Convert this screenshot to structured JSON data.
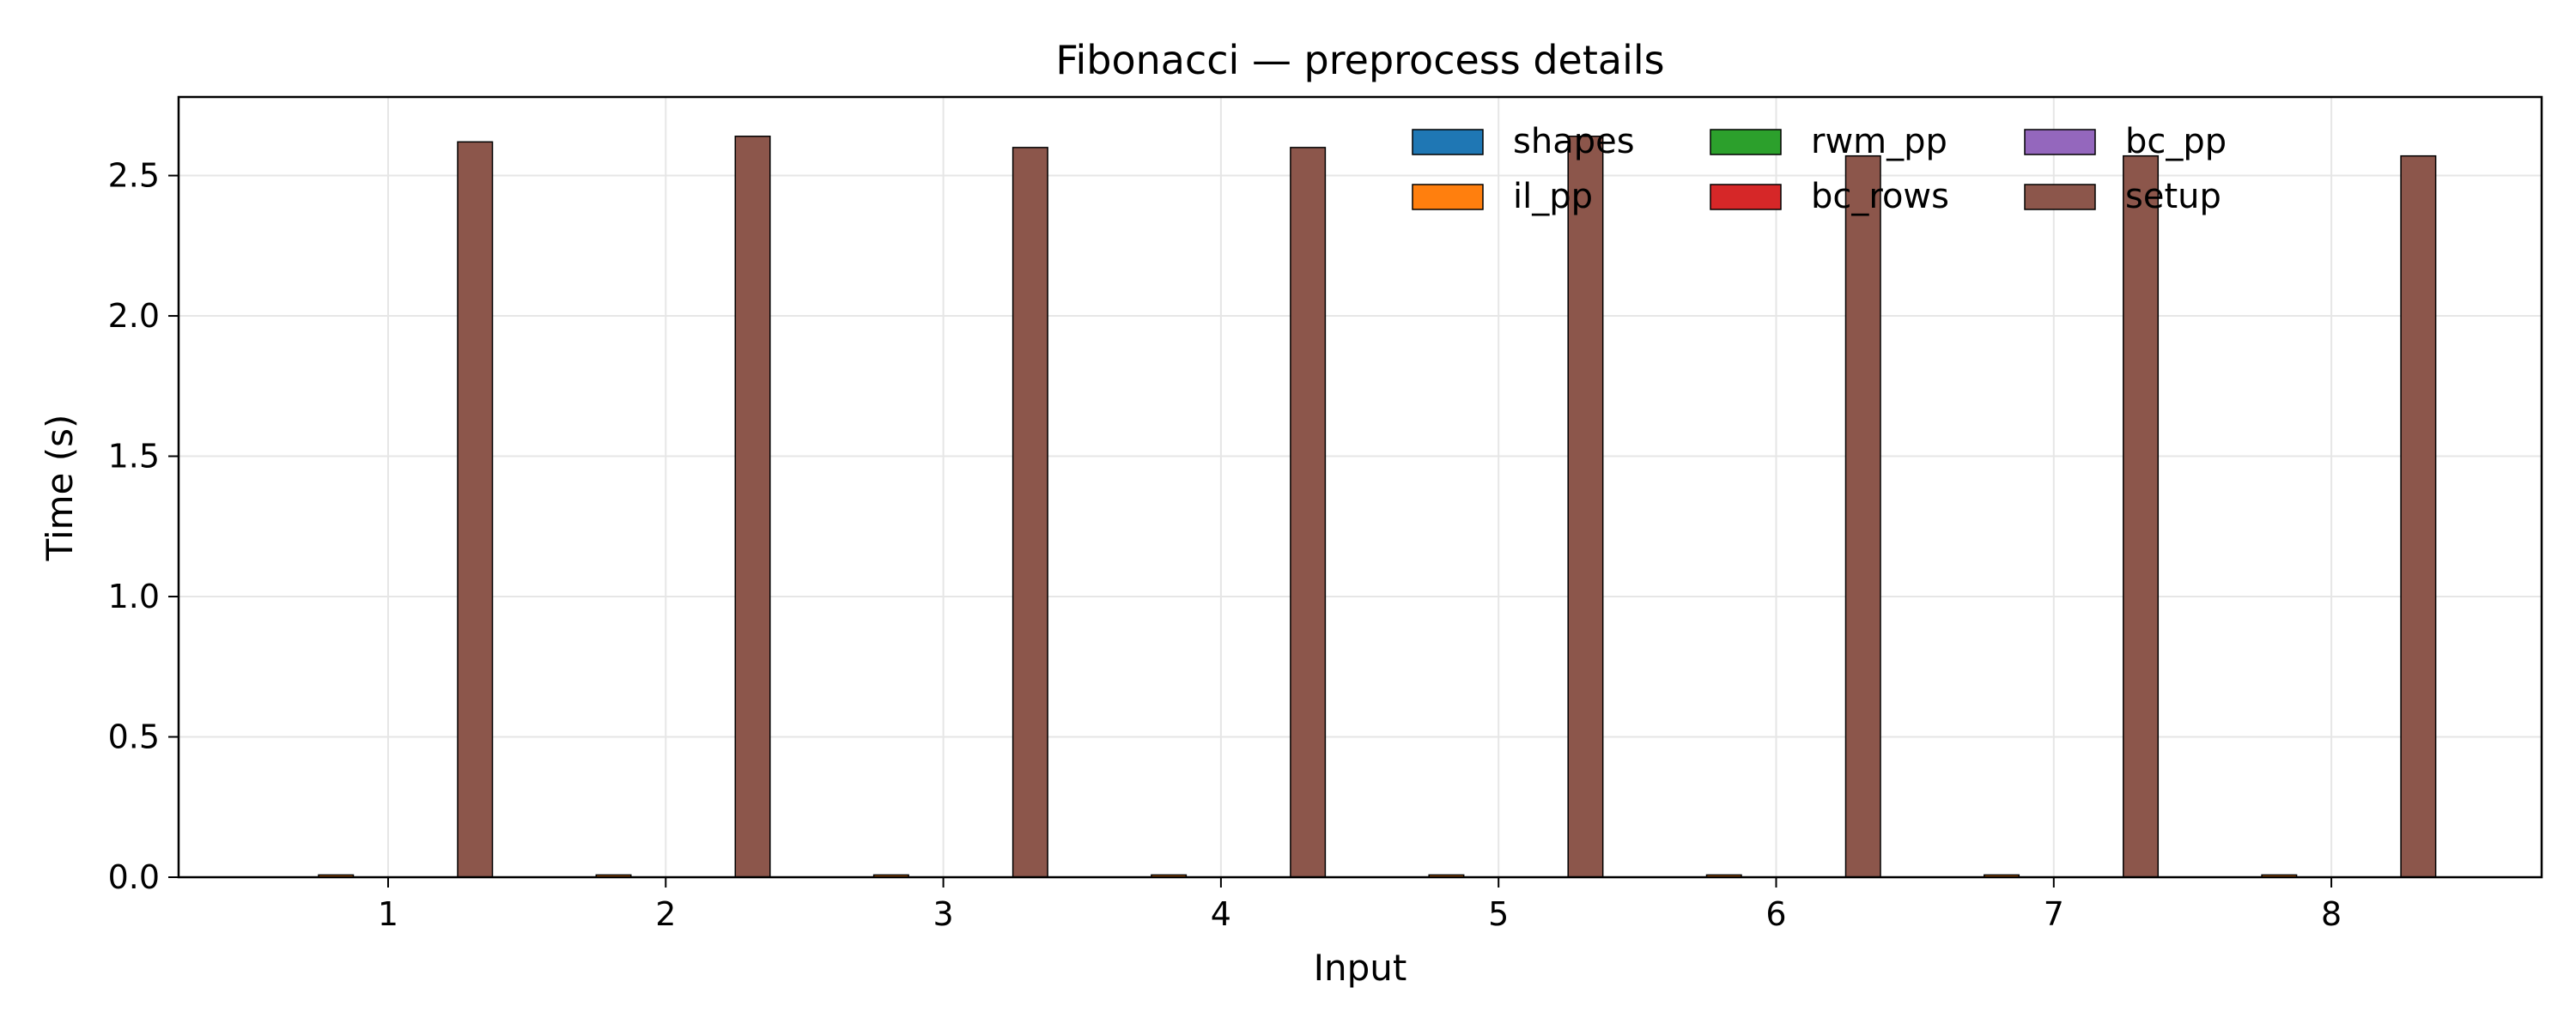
{
  "chart_data": {
    "type": "bar",
    "title": "Fibonacci — preprocess details",
    "xlabel": "Input",
    "ylabel": "Time (s)",
    "categories": [
      "1",
      "2",
      "3",
      "4",
      "5",
      "6",
      "7",
      "8"
    ],
    "ylim": [
      0,
      2.78
    ],
    "yticks": [
      "0.0",
      "0.5",
      "1.0",
      "1.5",
      "2.0",
      "2.5"
    ],
    "grid": true,
    "legend_placement": "top-right",
    "series": [
      {
        "name": "shapes",
        "color": "#1f77b4",
        "values": [
          0.0,
          0.0,
          0.0,
          0.0,
          0.0,
          0.0,
          0.0,
          0.0
        ]
      },
      {
        "name": "il_pp",
        "color": "#ff7f0e",
        "values": [
          0.008,
          0.008,
          0.008,
          0.008,
          0.008,
          0.008,
          0.008,
          0.008
        ]
      },
      {
        "name": "rwm_pp",
        "color": "#2ca02c",
        "values": [
          0.0,
          0.0,
          0.0,
          0.0,
          0.0,
          0.0,
          0.0,
          0.0
        ]
      },
      {
        "name": "bc_rows",
        "color": "#d62728",
        "values": [
          0.0,
          0.0,
          0.0,
          0.0,
          0.0,
          0.0,
          0.0,
          0.0
        ]
      },
      {
        "name": "bc_pp",
        "color": "#9467bd",
        "values": [
          0.0,
          0.0,
          0.0,
          0.0,
          0.0,
          0.0,
          0.0,
          0.0
        ]
      },
      {
        "name": "setup",
        "color": "#8c564b",
        "values": [
          2.62,
          2.64,
          2.6,
          2.6,
          2.64,
          2.57,
          2.57,
          2.57
        ]
      }
    ]
  }
}
